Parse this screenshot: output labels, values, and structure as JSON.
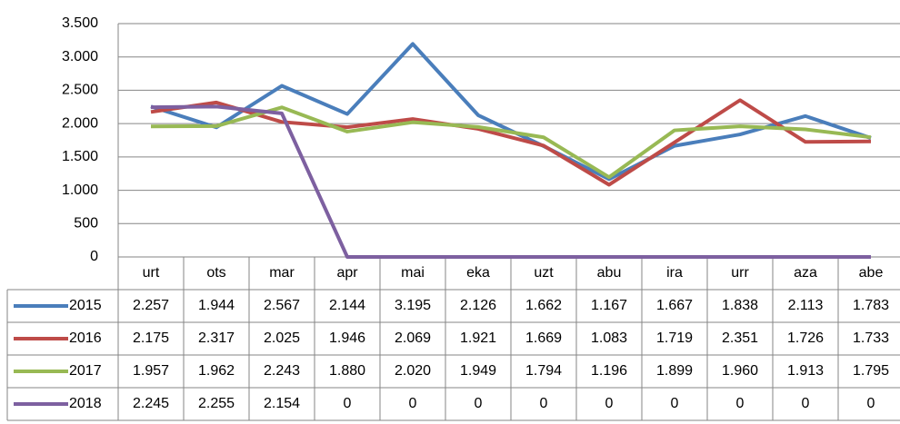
{
  "chart_data": {
    "type": "line",
    "categories": [
      "urt",
      "ots",
      "mar",
      "apr",
      "mai",
      "eka",
      "uzt",
      "abu",
      "ira",
      "urr",
      "aza",
      "abe"
    ],
    "series": [
      {
        "name": "2015",
        "color": "#4a7ebb",
        "values": [
          2257,
          1944,
          2567,
          2144,
          3195,
          2126,
          1662,
          1167,
          1667,
          1838,
          2113,
          1783
        ],
        "value_labels": [
          "2.257",
          "1.944",
          "2.567",
          "2.144",
          "3.195",
          "2.126",
          "1.662",
          "1.167",
          "1.667",
          "1.838",
          "2.113",
          "1.783"
        ]
      },
      {
        "name": "2016",
        "color": "#be4b48",
        "values": [
          2175,
          2317,
          2025,
          1946,
          2069,
          1921,
          1669,
          1083,
          1719,
          2351,
          1726,
          1733
        ],
        "value_labels": [
          "2.175",
          "2.317",
          "2.025",
          "1.946",
          "2.069",
          "1.921",
          "1.669",
          "1.083",
          "1.719",
          "2.351",
          "1.726",
          "1.733"
        ]
      },
      {
        "name": "2017",
        "color": "#98b954",
        "values": [
          1957,
          1962,
          2243,
          1880,
          2020,
          1949,
          1794,
          1196,
          1899,
          1960,
          1913,
          1795
        ],
        "value_labels": [
          "1.957",
          "1.962",
          "2.243",
          "1.880",
          "2.020",
          "1.949",
          "1.794",
          "1.196",
          "1.899",
          "1.960",
          "1.913",
          "1.795"
        ]
      },
      {
        "name": "2018",
        "color": "#7d60a0",
        "values": [
          2245,
          2255,
          2154,
          0,
          0,
          0,
          0,
          0,
          0,
          0,
          0,
          0
        ],
        "value_labels": [
          "2.245",
          "2.255",
          "2.154",
          "0",
          "0",
          "0",
          "0",
          "0",
          "0",
          "0",
          "0",
          "0"
        ]
      }
    ],
    "ylim": [
      0,
      3500
    ],
    "yticks": [
      0,
      500,
      {
        "value": 1000,
        "label": "1.000"
      },
      {
        "value": 1500,
        "label": "1.500"
      },
      {
        "value": 2000,
        "label": "2.000"
      },
      {
        "value": 2500,
        "label": "2.500"
      },
      {
        "value": 3000,
        "label": "3.000"
      },
      {
        "value": 3500,
        "label": "3.500"
      }
    ],
    "grid": true
  }
}
